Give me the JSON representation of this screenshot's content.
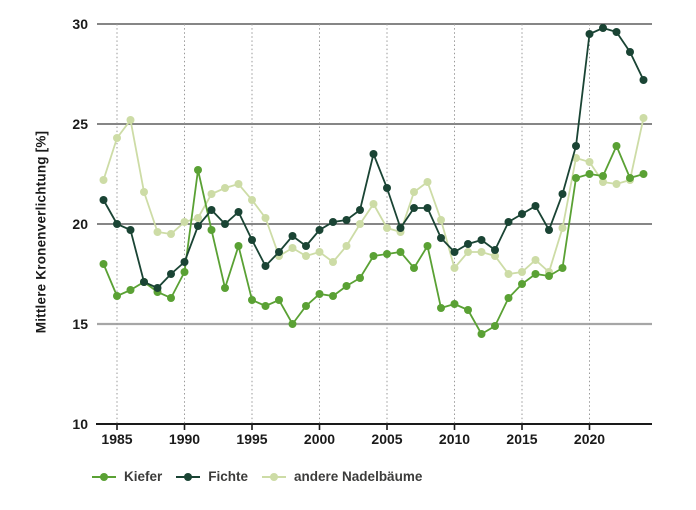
{
  "page": {
    "background": "#ffffff"
  },
  "chart_data": {
    "type": "line",
    "title": "",
    "ylabel": "Mittlere Kronenverlichtung [%]",
    "xlabel": "",
    "ylim": [
      10,
      30
    ],
    "yticks": [
      10,
      15,
      20,
      25,
      30
    ],
    "xticks": [
      1985,
      1990,
      1995,
      2000,
      2005,
      2010,
      2015,
      2020
    ],
    "grid": "horizontal solid lines, vertical dotted lines at 5-year ticks",
    "legend_position": "bottom-left",
    "x": [
      1984,
      1985,
      1986,
      1987,
      1988,
      1989,
      1990,
      1991,
      1992,
      1993,
      1994,
      1995,
      1996,
      1997,
      1998,
      1999,
      2000,
      2001,
      2002,
      2003,
      2004,
      2005,
      2006,
      2007,
      2008,
      2009,
      2010,
      2011,
      2012,
      2013,
      2014,
      2015,
      2016,
      2017,
      2018,
      2019,
      2020,
      2021,
      2022,
      2023,
      2024
    ],
    "series": [
      {
        "name": "Kiefer",
        "color": "#5aa134",
        "values": [
          18.0,
          16.4,
          16.7,
          17.1,
          16.6,
          16.3,
          17.6,
          22.7,
          19.7,
          16.8,
          18.9,
          16.2,
          15.9,
          16.2,
          15.0,
          15.9,
          16.5,
          16.4,
          16.9,
          17.3,
          18.4,
          18.5,
          18.6,
          17.8,
          18.9,
          15.8,
          16.0,
          15.7,
          14.5,
          14.9,
          16.3,
          17.0,
          17.5,
          17.4,
          17.8,
          22.3,
          22.5,
          22.4,
          23.9,
          22.3,
          22.5
        ]
      },
      {
        "name": "Fichte",
        "color": "#1a4434",
        "values": [
          21.2,
          20.0,
          19.7,
          17.1,
          16.8,
          17.5,
          18.1,
          19.9,
          20.7,
          20.0,
          20.6,
          19.2,
          17.9,
          18.6,
          19.4,
          18.9,
          19.7,
          20.1,
          20.2,
          20.7,
          23.5,
          21.8,
          19.8,
          20.8,
          20.8,
          19.3,
          18.6,
          19.0,
          19.2,
          18.7,
          20.1,
          20.5,
          20.9,
          19.7,
          21.5,
          23.9,
          29.5,
          29.8,
          29.6,
          28.6,
          27.2
        ]
      },
      {
        "name": "andere Nadelbäume",
        "color": "#cddca6",
        "values": [
          22.2,
          24.3,
          25.2,
          21.6,
          19.6,
          19.5,
          20.1,
          20.3,
          21.5,
          21.8,
          22.0,
          21.2,
          20.3,
          18.4,
          18.8,
          18.4,
          18.6,
          18.1,
          18.9,
          20.0,
          21.0,
          19.8,
          19.6,
          21.6,
          22.1,
          20.2,
          17.8,
          18.6,
          18.6,
          18.4,
          17.5,
          17.6,
          18.2,
          17.6,
          19.8,
          23.3,
          23.1,
          22.1,
          22.0,
          22.2,
          25.3
        ]
      }
    ],
    "axis_colors": {
      "grid_dark": "#3f3f3f",
      "grid_light": "#a6a6a6",
      "axis": "#1a1a1a",
      "dotted": "#9a9a9a"
    }
  },
  "legend": {
    "items": [
      {
        "label": "Kiefer"
      },
      {
        "label": "Fichte"
      },
      {
        "label": "andere Nadelbäume"
      }
    ]
  }
}
